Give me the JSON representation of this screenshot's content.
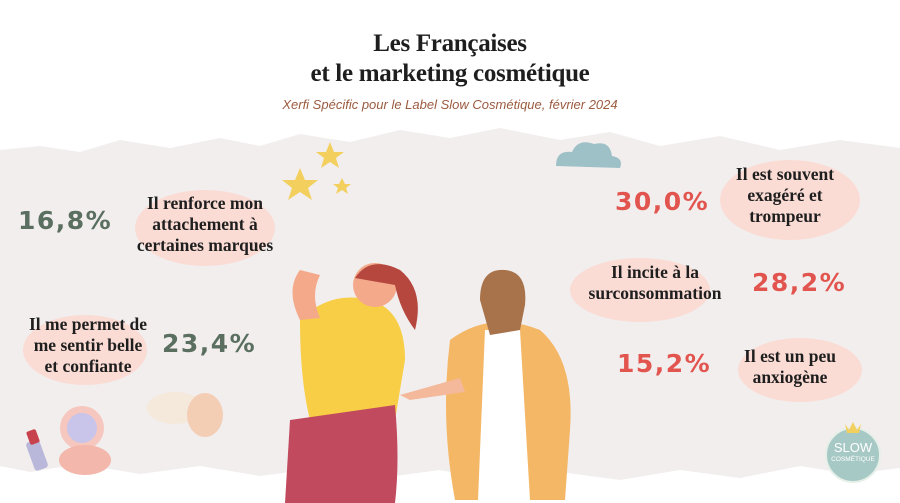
{
  "header": {
    "title": [
      "Les Françaises",
      "et le marketing cosmétique"
    ],
    "subtitle": "Xerfi Spécific pour le Label Slow Cosmétique, février 2024"
  },
  "items": [
    {
      "value": "16,8%",
      "label": [
        "Il renforce mon",
        "attachement à",
        "certaines marques"
      ]
    },
    {
      "value": "23,4%",
      "label": [
        "Il me permet de",
        "me sentir belle",
        "et confiante"
      ]
    },
    {
      "value": "30,0%",
      "label": [
        "Il est souvent",
        "exagéré et",
        "trompeur"
      ]
    },
    {
      "value": "28,2%",
      "label": [
        "Il incite à la",
        "surconsommation"
      ]
    },
    {
      "value": "15,2%",
      "label": [
        "Il est un peu",
        "anxiogène"
      ]
    }
  ],
  "logo": [
    "SLOW",
    "COSMÉTIQUE"
  ]
}
